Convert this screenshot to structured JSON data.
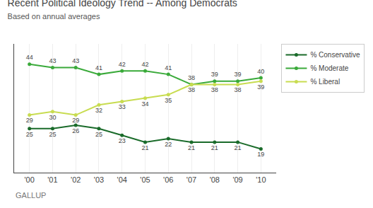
{
  "chart_data": {
    "type": "line",
    "title": "Recent Political Ideology Trend -- Among Democrats",
    "subtitle": "Based on annual averages",
    "categories": [
      "'00",
      "'01",
      "'02",
      "'03",
      "'04",
      "'05",
      "'06",
      "'07",
      "'08",
      "'09",
      "'10"
    ],
    "series": [
      {
        "name": "% Conservative",
        "color": "#1a6b2a",
        "values": [
          25,
          25,
          26,
          25,
          23,
          21,
          22,
          21,
          21,
          21,
          19
        ]
      },
      {
        "name": "% Moderate",
        "color": "#3aaa3a",
        "values": [
          44,
          43,
          43,
          41,
          42,
          42,
          41,
          38,
          39,
          39,
          40
        ]
      },
      {
        "name": "% Liberal",
        "color": "#c8dc50",
        "values": [
          29,
          30,
          29,
          32,
          33,
          34,
          35,
          38,
          38,
          38,
          39
        ]
      }
    ],
    "ylim": [
      12,
      50
    ],
    "grid": "x",
    "tick_labels": "x",
    "data_labels": true,
    "marker": "circle",
    "legend": "right",
    "annotations": [
      "GALLUP"
    ],
    "background_color": "#ffffff"
  }
}
